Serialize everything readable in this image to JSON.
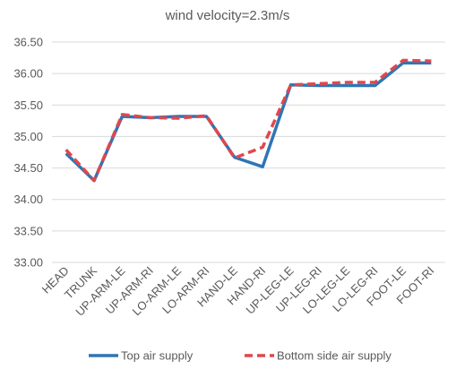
{
  "chart_data": {
    "type": "line",
    "title": "wind velocity=2.3m/s",
    "xlabel": "",
    "ylabel": "",
    "categories": [
      "HEAD",
      "TRUNK",
      "UP-ARM-LE",
      "UP-ARM-RI",
      "LO-ARM-LE",
      "LO-ARM-RI",
      "HAND-LE",
      "HAND-RI",
      "UP-LEG-LE",
      "UP-LEG-RI",
      "LO-LEG-LE",
      "LO-LEG-RI",
      "FOOT-LE",
      "FOOT-RI"
    ],
    "ylim": [
      33.0,
      36.5
    ],
    "yticks": [
      33.0,
      33.5,
      34.0,
      34.5,
      35.0,
      35.5,
      36.0,
      36.5
    ],
    "ytick_labels": [
      "33.00",
      "33.50",
      "34.00",
      "34.50",
      "35.00",
      "35.50",
      "36.00",
      "36.50"
    ],
    "grid": true,
    "legend_position": "bottom",
    "series": [
      {
        "name": "Top air supply",
        "color": "#2E75B6",
        "style": "solid",
        "values": [
          34.73,
          34.3,
          35.32,
          35.3,
          35.32,
          35.32,
          34.67,
          34.52,
          35.82,
          35.81,
          35.81,
          35.81,
          36.17,
          36.17
        ]
      },
      {
        "name": "Bottom side air supply",
        "color": "#E0474C",
        "style": "dashed",
        "values": [
          34.79,
          34.3,
          35.35,
          35.3,
          35.29,
          35.33,
          34.66,
          34.83,
          35.82,
          35.84,
          35.86,
          35.86,
          36.21,
          36.2
        ]
      }
    ]
  }
}
